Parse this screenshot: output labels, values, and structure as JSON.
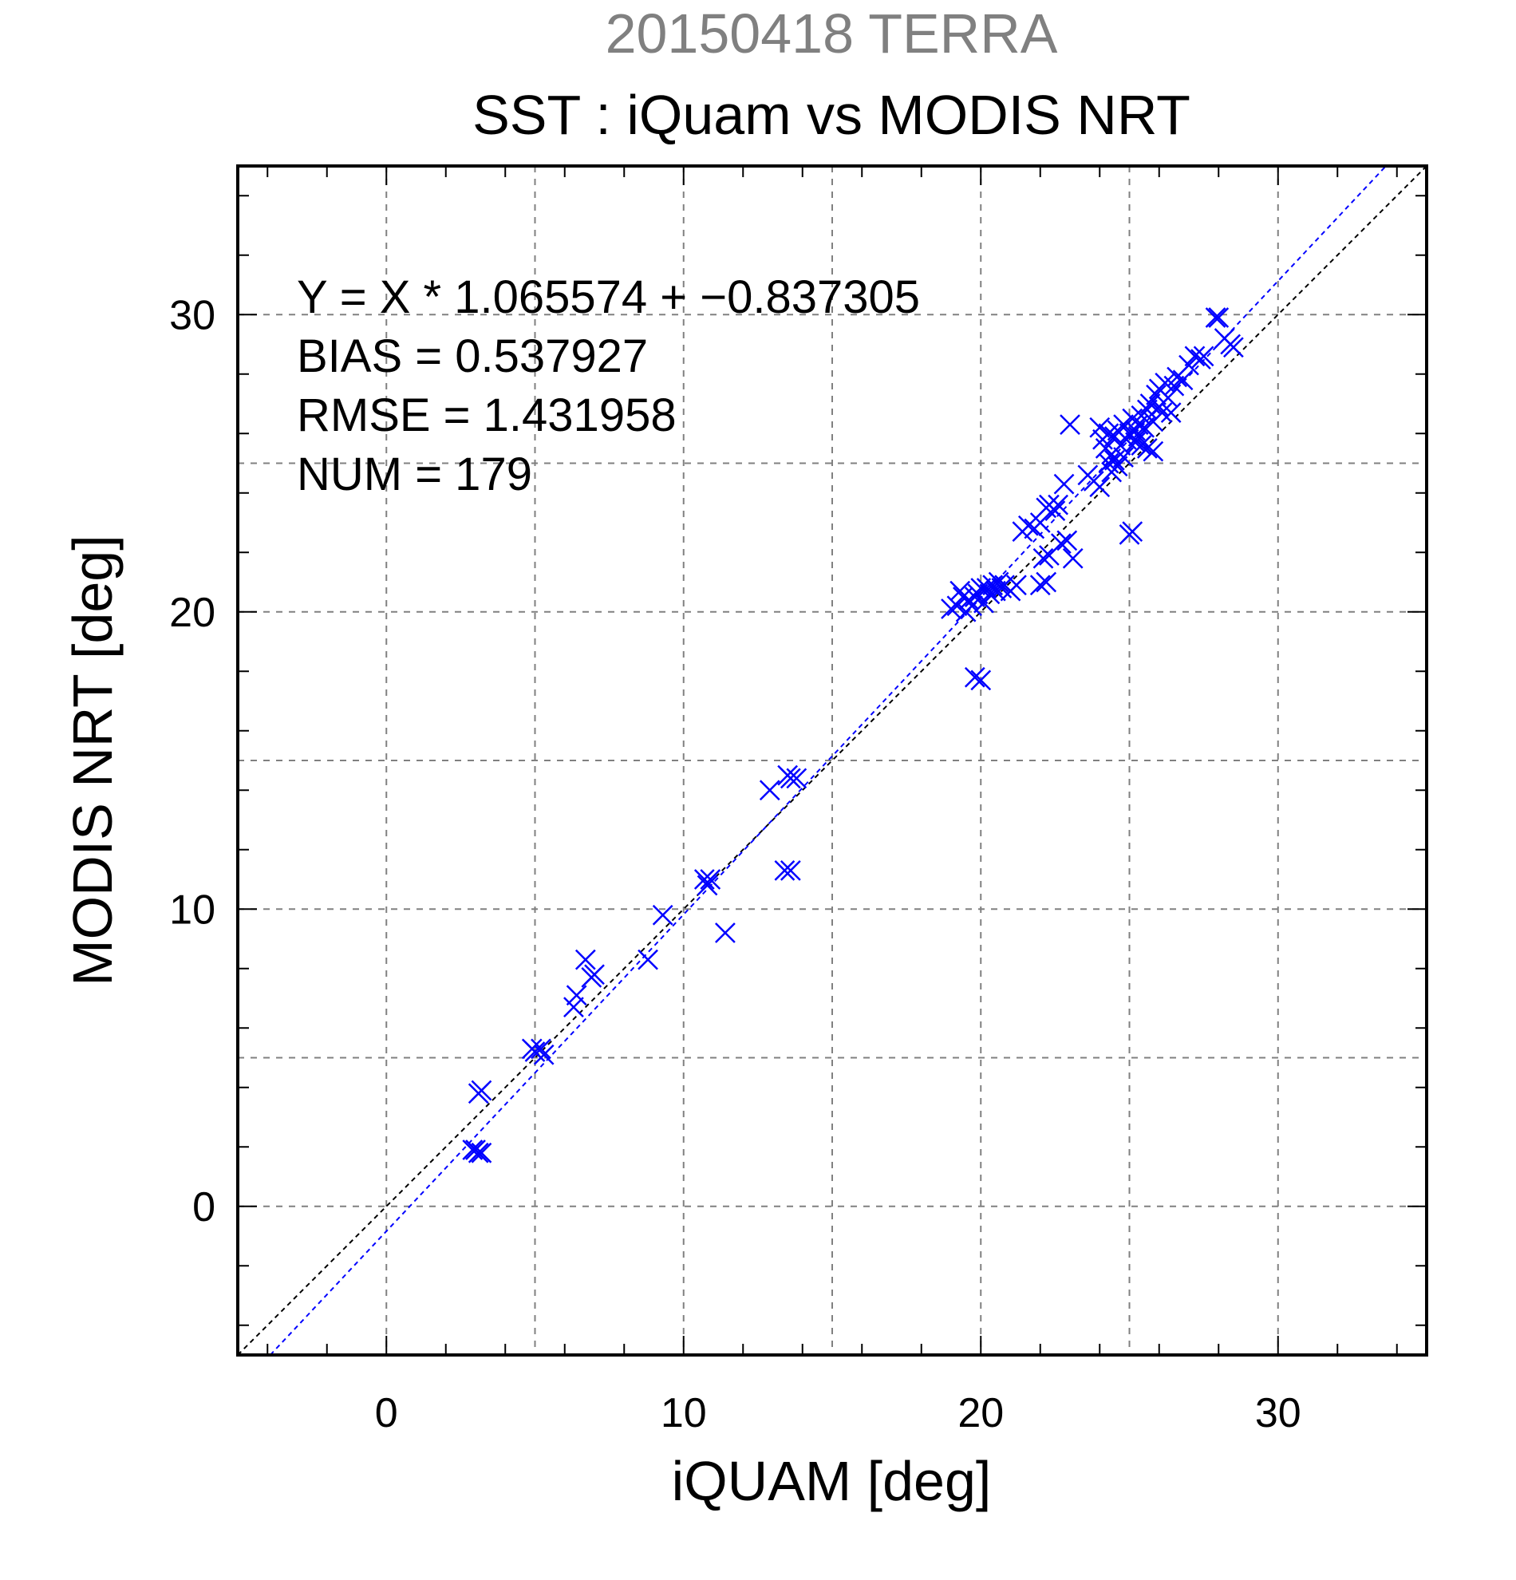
{
  "chart_data": {
    "type": "scatter",
    "supertitle": "20150418 TERRA",
    "title": "SST : iQuam vs MODIS NRT",
    "xlabel": "iQUAM [deg]",
    "ylabel": "MODIS NRT [deg]",
    "xlim": [
      -5,
      35
    ],
    "ylim": [
      -5,
      35
    ],
    "xticks": [
      0,
      10,
      20,
      30
    ],
    "yticks": [
      0,
      10,
      20,
      30
    ],
    "xtick_labels": [
      "0",
      "10",
      "20",
      "30"
    ],
    "ytick_labels": [
      "0",
      "10",
      "20",
      "30"
    ],
    "grid": true,
    "stats": {
      "equation": "Y = X * 1.065574 + −0.837305",
      "bias": "BIAS = 0.537927",
      "rmse": "RMSE = 1.431958",
      "num": "NUM = 179"
    },
    "fit_line": {
      "slope": 1.065574,
      "intercept": -0.837305,
      "color": "#0000ff"
    },
    "identity_line": {
      "slope": 1,
      "intercept": 0,
      "color": "#000000"
    },
    "colors": {
      "points": "#0000ff",
      "supertitle": "#808080",
      "title": "#000000"
    },
    "series": [
      {
        "marker": "x",
        "points": [
          [
            2.9,
            1.9
          ],
          [
            3.1,
            1.8
          ],
          [
            3.2,
            1.8
          ],
          [
            3.0,
            1.9
          ],
          [
            3.1,
            3.8
          ],
          [
            3.2,
            3.9
          ],
          [
            4.9,
            5.3
          ],
          [
            5.0,
            5.2
          ],
          [
            5.2,
            5.3
          ],
          [
            5.3,
            5.1
          ],
          [
            6.3,
            6.7
          ],
          [
            6.4,
            7.1
          ],
          [
            6.7,
            8.3
          ],
          [
            6.9,
            7.7
          ],
          [
            7.0,
            7.8
          ],
          [
            8.8,
            8.3
          ],
          [
            9.3,
            9.8
          ],
          [
            10.7,
            11.0
          ],
          [
            10.8,
            10.8
          ],
          [
            10.9,
            11.0
          ],
          [
            11.4,
            9.2
          ],
          [
            12.9,
            14.0
          ],
          [
            13.5,
            14.5
          ],
          [
            13.6,
            14.4
          ],
          [
            13.8,
            14.4
          ],
          [
            13.4,
            11.3
          ],
          [
            13.6,
            11.3
          ],
          [
            19.0,
            20.1
          ],
          [
            19.2,
            20.2
          ],
          [
            19.3,
            20.7
          ],
          [
            19.4,
            20.5
          ],
          [
            19.5,
            20.0
          ],
          [
            19.6,
            20.4
          ],
          [
            19.7,
            20.2
          ],
          [
            19.8,
            20.5
          ],
          [
            19.8,
            17.8
          ],
          [
            20.0,
            17.7
          ],
          [
            19.9,
            20.6
          ],
          [
            20.0,
            20.8
          ],
          [
            20.1,
            20.3
          ],
          [
            20.2,
            20.8
          ],
          [
            20.3,
            20.6
          ],
          [
            20.4,
            20.9
          ],
          [
            20.5,
            20.7
          ],
          [
            20.6,
            21.0
          ],
          [
            20.7,
            20.8
          ],
          [
            20.8,
            20.9
          ],
          [
            21.0,
            20.7
          ],
          [
            21.2,
            20.9
          ],
          [
            21.4,
            22.7
          ],
          [
            21.6,
            22.9
          ],
          [
            21.8,
            22.8
          ],
          [
            22.0,
            23.0
          ],
          [
            22.0,
            20.9
          ],
          [
            22.2,
            21.0
          ],
          [
            22.1,
            21.8
          ],
          [
            22.3,
            21.9
          ],
          [
            22.2,
            23.5
          ],
          [
            22.3,
            23.6
          ],
          [
            22.5,
            23.4
          ],
          [
            22.6,
            23.6
          ],
          [
            22.7,
            22.3
          ],
          [
            22.9,
            22.4
          ],
          [
            23.1,
            21.8
          ],
          [
            22.8,
            24.3
          ],
          [
            23.0,
            26.3
          ],
          [
            23.6,
            24.6
          ],
          [
            23.8,
            24.4
          ],
          [
            24.0,
            24.2
          ],
          [
            24.0,
            26.2
          ],
          [
            24.1,
            25.8
          ],
          [
            24.2,
            25.5
          ],
          [
            24.3,
            25.0
          ],
          [
            24.3,
            26.0
          ],
          [
            24.4,
            25.3
          ],
          [
            24.4,
            24.7
          ],
          [
            24.5,
            25.9
          ],
          [
            24.5,
            25.1
          ],
          [
            24.6,
            24.9
          ],
          [
            24.6,
            26.1
          ],
          [
            24.7,
            25.6
          ],
          [
            24.8,
            26.3
          ],
          [
            24.8,
            25.2
          ],
          [
            24.9,
            25.8
          ],
          [
            25.0,
            26.0
          ],
          [
            25.0,
            22.6
          ],
          [
            25.1,
            22.7
          ],
          [
            25.1,
            26.5
          ],
          [
            25.2,
            26.1
          ],
          [
            25.2,
            25.7
          ],
          [
            25.3,
            26.3
          ],
          [
            25.3,
            25.9
          ],
          [
            25.4,
            26.6
          ],
          [
            25.4,
            25.6
          ],
          [
            25.5,
            26.2
          ],
          [
            25.6,
            25.5
          ],
          [
            25.6,
            26.8
          ],
          [
            25.7,
            27.0
          ],
          [
            25.8,
            25.4
          ],
          [
            25.8,
            26.4
          ],
          [
            25.9,
            27.3
          ],
          [
            26.0,
            26.9
          ],
          [
            26.0,
            27.5
          ],
          [
            26.1,
            26.7
          ],
          [
            26.2,
            27.7
          ],
          [
            26.3,
            27.2
          ],
          [
            26.4,
            26.7
          ],
          [
            26.5,
            27.6
          ],
          [
            26.6,
            27.9
          ],
          [
            26.8,
            27.8
          ],
          [
            27.0,
            28.3
          ],
          [
            27.2,
            28.6
          ],
          [
            27.4,
            28.5
          ],
          [
            27.5,
            28.6
          ],
          [
            27.9,
            29.9
          ],
          [
            28.0,
            29.9
          ],
          [
            28.2,
            29.2
          ],
          [
            28.4,
            29.0
          ],
          [
            28.5,
            28.9
          ]
        ]
      }
    ]
  }
}
